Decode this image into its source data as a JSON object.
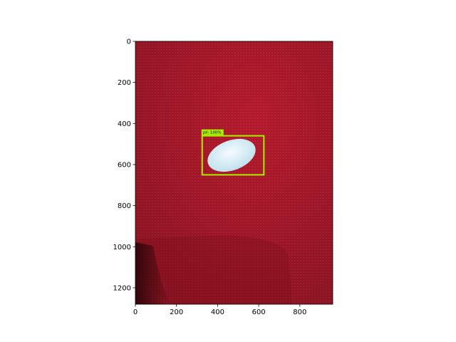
{
  "chart_data": {
    "type": "image",
    "xlim": [
      0,
      960
    ],
    "ylim": [
      1280,
      0
    ],
    "xticks": [
      0,
      200,
      400,
      600,
      800
    ],
    "yticks": [
      0,
      200,
      400,
      600,
      800,
      1000,
      1200
    ],
    "boxes": [
      {
        "label": "pil: 100%",
        "color": "#a8f000",
        "x": [
          325,
          625
        ],
        "y": [
          460,
          650
        ]
      }
    ]
  }
}
